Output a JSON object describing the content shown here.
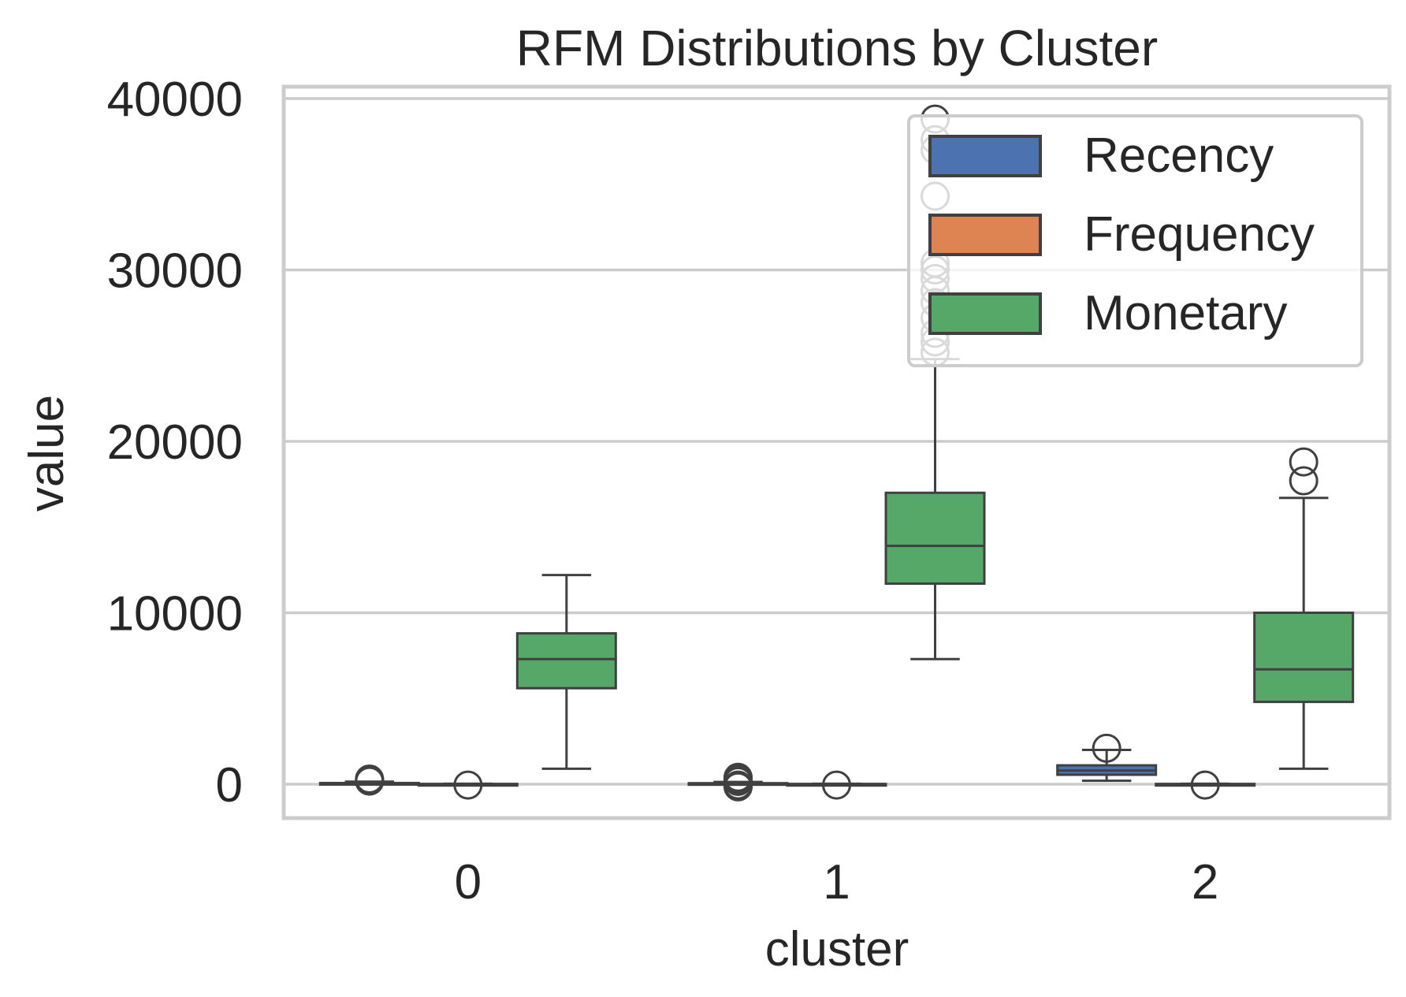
{
  "chart_data": {
    "type": "box",
    "title": "RFM Distributions by Cluster",
    "xlabel": "cluster",
    "ylabel": "value",
    "categories": [
      "0",
      "1",
      "2"
    ],
    "ylim": [
      -2000,
      42000
    ],
    "yticks": [
      0,
      10000,
      20000,
      30000,
      40000
    ],
    "yticklabels": [
      "0",
      "10000",
      "20000",
      "30000",
      "40000"
    ],
    "grid": true,
    "legend_position": "top-right",
    "series": [
      {
        "name": "Recency",
        "color": "#4c72b0",
        "boxes": [
          {
            "min": 0,
            "q1": 10,
            "median": 30,
            "q3": 70,
            "max": 150,
            "outliers": [
              180,
              220,
              260,
              300
            ]
          },
          {
            "min": 0,
            "q1": 10,
            "median": 30,
            "q3": 60,
            "max": 130,
            "outliers": [
              -150,
              -100,
              -50,
              160,
              200,
              250,
              300,
              350,
              400
            ]
          },
          {
            "min": 200,
            "q1": 550,
            "median": 800,
            "q3": 1100,
            "max": 2000,
            "outliers": [
              2100
            ]
          }
        ]
      },
      {
        "name": "Frequency",
        "color": "#dd8452",
        "boxes": [
          {
            "min": 0,
            "q1": 0,
            "median": 5,
            "q3": 15,
            "max": 30,
            "outliers": [
              -50
            ]
          },
          {
            "min": 0,
            "q1": 0,
            "median": 5,
            "q3": 15,
            "max": 30,
            "outliers": [
              -50
            ]
          },
          {
            "min": 0,
            "q1": 0,
            "median": 5,
            "q3": 15,
            "max": 30,
            "outliers": [
              -50
            ]
          }
        ]
      },
      {
        "name": "Monetary",
        "color": "#55a868",
        "boxes": [
          {
            "min": 900,
            "q1": 5600,
            "median": 7300,
            "q3": 8800,
            "max": 12200,
            "outliers": []
          },
          {
            "min": 7300,
            "q1": 11700,
            "median": 13900,
            "q3": 17000,
            "max": 24800,
            "outliers": [
              25200,
              25800,
              26300,
              27200,
              28100,
              28800,
              29500,
              30000,
              30400,
              34300,
              37000,
              37600,
              38800
            ]
          },
          {
            "min": 900,
            "q1": 4800,
            "median": 6700,
            "q3": 10000,
            "max": 16700,
            "outliers": [
              17700,
              18800
            ]
          }
        ]
      }
    ]
  }
}
